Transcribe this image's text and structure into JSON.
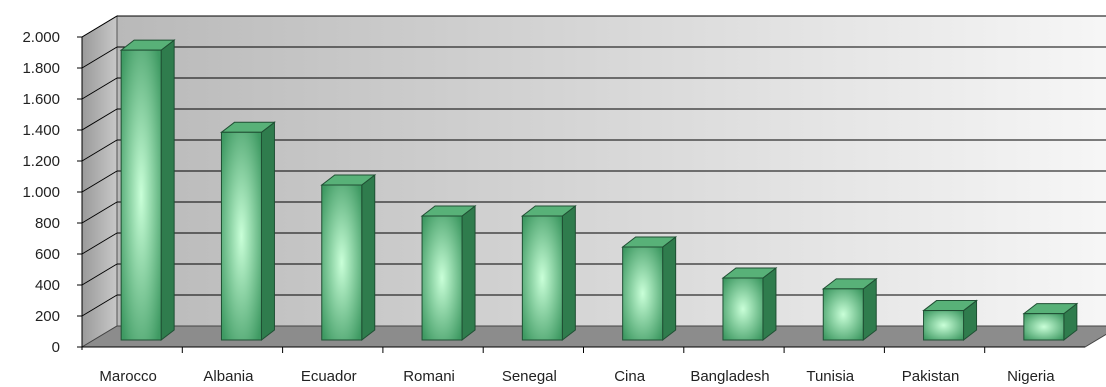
{
  "chart_data": {
    "type": "bar",
    "style": "3d",
    "categories": [
      "Marocco",
      "Albania",
      "Ecuador",
      "Romani",
      "Senegal",
      "Cina",
      "Bangladesh",
      "Tunisia",
      "Pakistan",
      "Nigeria"
    ],
    "values": [
      1870,
      1340,
      1000,
      800,
      800,
      600,
      400,
      330,
      190,
      170
    ],
    "ylim": [
      0,
      2000
    ],
    "yticks": [
      0,
      200,
      400,
      600,
      800,
      1000,
      1200,
      1400,
      1600,
      1800,
      2000
    ],
    "ytick_labels": [
      "0",
      "200",
      "400",
      "600",
      "800",
      "1.000",
      "1.200",
      "1.400",
      "1.600",
      "1.800",
      "2.000"
    ],
    "grid": true,
    "legend": "none",
    "colors": {
      "bar_front": "#3f9a63",
      "bar_highlight": "#c9ffd8",
      "bar_side": "#2f7c4d",
      "bar_top": "#58b178",
      "bar_edge": "#1f4f33",
      "floor": "#8c8c8c",
      "back_wall_light": "#f7f7f7",
      "back_wall_dark": "#b9b9b9",
      "gridline": "#000000"
    }
  }
}
